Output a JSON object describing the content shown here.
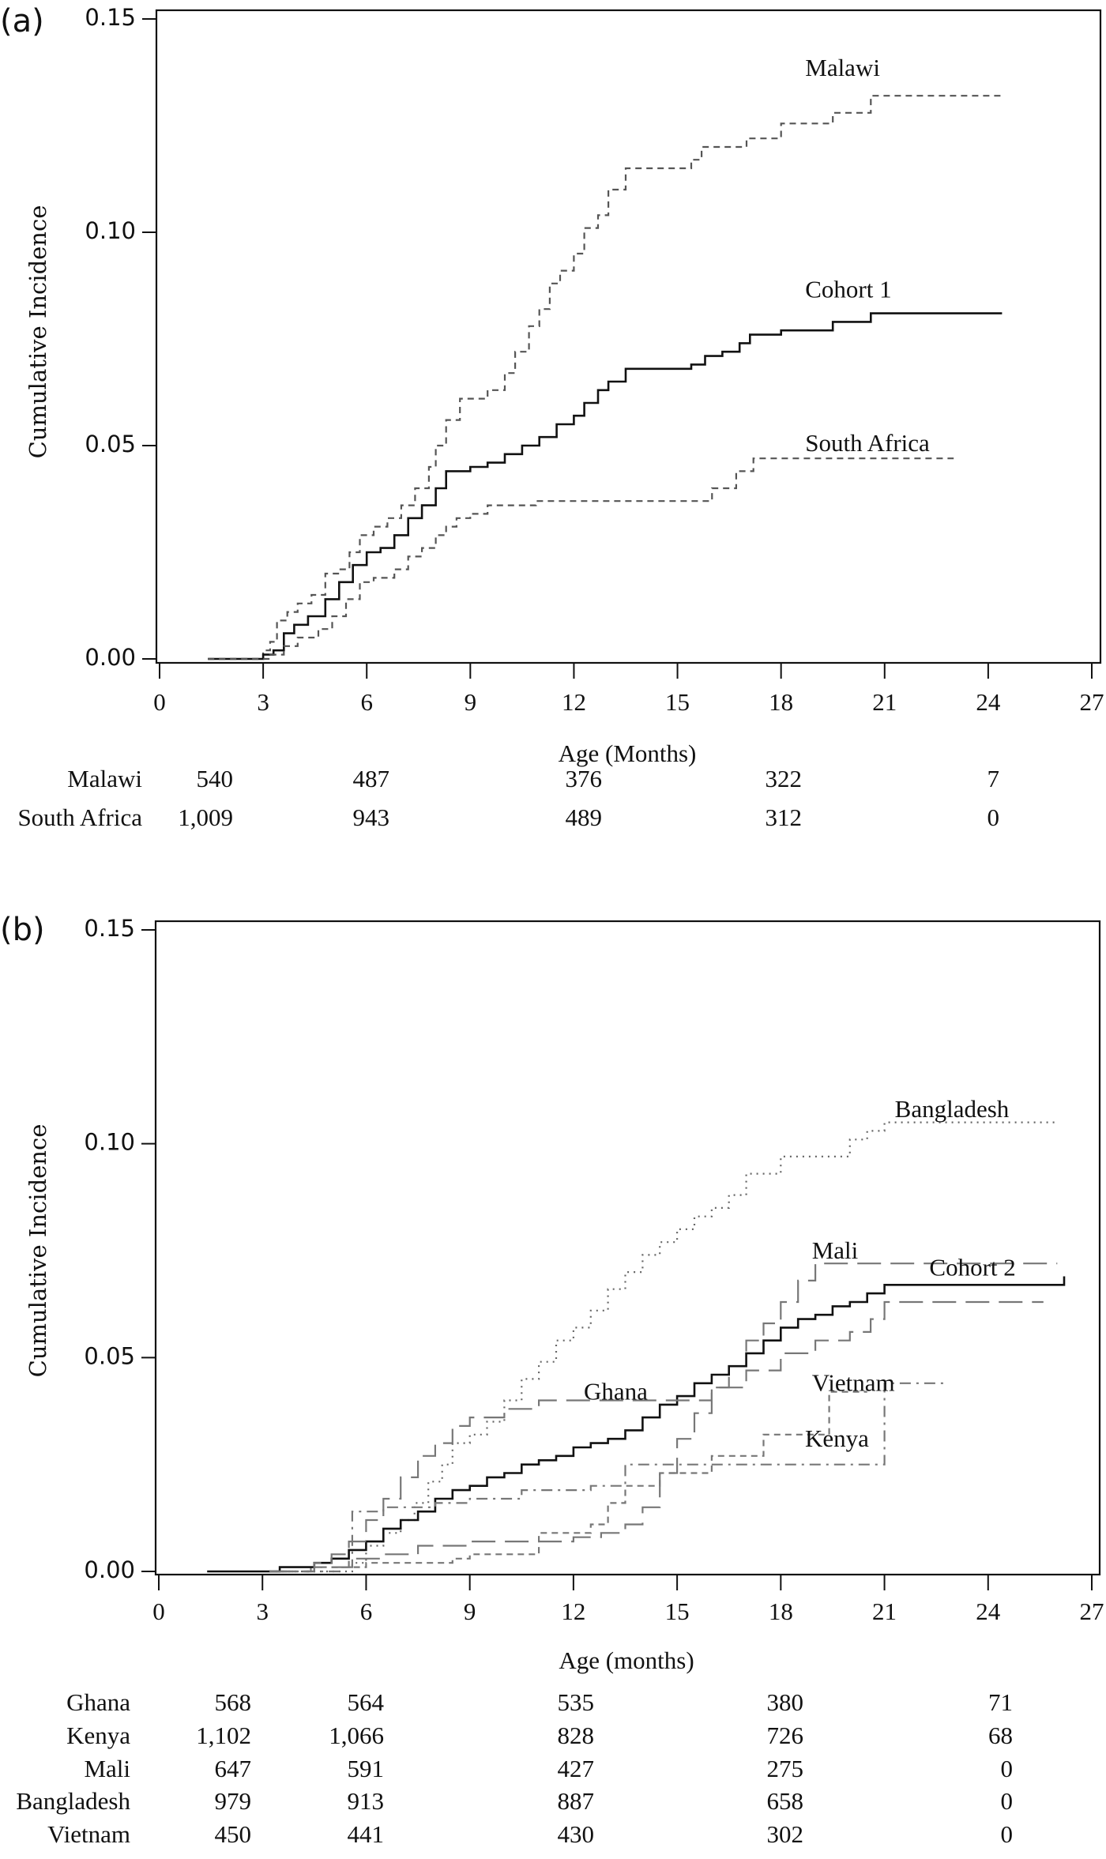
{
  "figure": {
    "panels_count": 2
  },
  "chart_data": [
    {
      "panel_label": "(a)",
      "type": "line",
      "step": true,
      "title": "",
      "xlabel": "Age (Months)",
      "ylabel": "Cumulative Incidence",
      "xlim": [
        0,
        27
      ],
      "ylim": [
        0,
        0.15
      ],
      "xticks": [
        0,
        3,
        6,
        9,
        12,
        15,
        18,
        21,
        24,
        27
      ],
      "xtick_labels": [
        "0",
        "3",
        "6",
        "9",
        "12",
        "15",
        "18",
        "21",
        "24",
        "27"
      ],
      "yticks": [
        0,
        0.05,
        0.1,
        0.15
      ],
      "ytick_labels": [
        "0.00",
        "0.05",
        "0.10",
        "0.15"
      ],
      "grid": false,
      "legend": "inline labels near curve ends",
      "series": [
        {
          "name": "Malawi",
          "style": "short-dash",
          "color": "#555555",
          "label_at": [
            18.7,
            0.138
          ],
          "x": [
            1.4,
            2.9,
            3.0,
            3.2,
            3.4,
            3.7,
            4.0,
            4.4,
            4.8,
            5.2,
            5.5,
            5.8,
            6.2,
            6.6,
            7.0,
            7.4,
            7.8,
            8.0,
            8.3,
            8.7,
            9.0,
            9.5,
            10.0,
            10.3,
            10.7,
            11.0,
            11.3,
            11.6,
            12.0,
            12.3,
            12.7,
            13.0,
            13.5,
            15.4,
            15.7,
            17.0,
            18.0,
            19.5,
            20.6,
            24.4
          ],
          "y": [
            0.0,
            0.0,
            0.002,
            0.004,
            0.009,
            0.011,
            0.013,
            0.015,
            0.02,
            0.021,
            0.025,
            0.029,
            0.031,
            0.033,
            0.036,
            0.04,
            0.045,
            0.05,
            0.056,
            0.061,
            0.061,
            0.063,
            0.067,
            0.072,
            0.078,
            0.082,
            0.088,
            0.091,
            0.095,
            0.101,
            0.104,
            0.11,
            0.115,
            0.117,
            0.12,
            0.122,
            0.1255,
            0.128,
            0.132,
            0.132
          ]
        },
        {
          "name": "Cohort 1",
          "style": "solid",
          "color": "#111111",
          "label_at": [
            18.7,
            0.086
          ],
          "x": [
            1.4,
            2.9,
            3.0,
            3.3,
            3.6,
            3.9,
            4.3,
            4.8,
            5.2,
            5.6,
            6.0,
            6.4,
            6.8,
            7.2,
            7.6,
            8.0,
            8.3,
            8.6,
            9.0,
            9.5,
            10.0,
            10.5,
            11.0,
            11.5,
            12.0,
            12.3,
            12.7,
            13.0,
            13.5,
            15.4,
            15.8,
            16.3,
            16.8,
            17.1,
            18.0,
            19.5,
            20.6,
            24.4
          ],
          "y": [
            0.0,
            0.0,
            0.001,
            0.002,
            0.006,
            0.008,
            0.01,
            0.014,
            0.018,
            0.022,
            0.025,
            0.026,
            0.029,
            0.033,
            0.036,
            0.04,
            0.044,
            0.044,
            0.045,
            0.046,
            0.048,
            0.05,
            0.052,
            0.055,
            0.057,
            0.06,
            0.063,
            0.065,
            0.068,
            0.069,
            0.071,
            0.072,
            0.074,
            0.076,
            0.077,
            0.079,
            0.081,
            0.081
          ]
        },
        {
          "name": "South Africa",
          "style": "short-dash",
          "color": "#555555",
          "label_at": [
            18.7,
            0.05
          ],
          "x": [
            1.4,
            2.9,
            3.2,
            3.6,
            4.0,
            4.6,
            5.0,
            5.4,
            5.8,
            6.2,
            6.8,
            7.2,
            7.6,
            8.0,
            8.3,
            8.6,
            9.0,
            9.5,
            10.9,
            16.0,
            16.7,
            17.2,
            23.0
          ],
          "y": [
            0.0,
            0.0,
            0.001,
            0.003,
            0.005,
            0.007,
            0.01,
            0.014,
            0.018,
            0.019,
            0.021,
            0.024,
            0.026,
            0.029,
            0.031,
            0.033,
            0.034,
            0.036,
            0.037,
            0.04,
            0.044,
            0.047,
            0.047
          ]
        }
      ],
      "risk_table": {
        "x_positions": [
          1.5,
          6,
          12,
          18,
          24
        ],
        "rows": [
          {
            "label": "Malawi",
            "values": [
              "540",
              "487",
              "376",
              "322",
              "7"
            ]
          },
          {
            "label": "South Africa",
            "values": [
              "1,009",
              "943",
              "489",
              "312",
              "0"
            ]
          }
        ]
      }
    },
    {
      "panel_label": "(b)",
      "type": "line",
      "step": true,
      "title": "",
      "xlabel": "Age (months)",
      "ylabel": "Cumulative Incidence",
      "xlim": [
        0,
        27
      ],
      "ylim": [
        0,
        0.15
      ],
      "xticks": [
        0,
        3,
        6,
        9,
        12,
        15,
        18,
        21,
        24,
        27
      ],
      "xtick_labels": [
        "0",
        "3",
        "6",
        "9",
        "12",
        "15",
        "18",
        "21",
        "24",
        "27"
      ],
      "yticks": [
        0,
        0.05,
        0.1,
        0.15
      ],
      "ytick_labels": [
        "0.00",
        "0.05",
        "0.10",
        "0.15"
      ],
      "grid": false,
      "legend": "inline labels near curves",
      "series": [
        {
          "name": "Bangladesh",
          "style": "dotted",
          "color": "#666666",
          "label_at": [
            21.3,
            0.1075
          ],
          "x": [
            3.2,
            5.3,
            5.6,
            6.0,
            6.5,
            7.0,
            7.4,
            7.8,
            8.2,
            8.5,
            9.0,
            9.5,
            10.0,
            10.5,
            11.0,
            11.5,
            12.0,
            12.5,
            13.0,
            13.5,
            14.0,
            14.5,
            15.0,
            15.5,
            16.0,
            16.5,
            17.0,
            18.0,
            19.0,
            20.0,
            20.5,
            21.0,
            26.0
          ],
          "y": [
            0.0,
            0.0,
            0.002,
            0.006,
            0.009,
            0.012,
            0.016,
            0.021,
            0.025,
            0.03,
            0.032,
            0.035,
            0.04,
            0.045,
            0.049,
            0.054,
            0.057,
            0.061,
            0.066,
            0.07,
            0.074,
            0.077,
            0.08,
            0.083,
            0.085,
            0.088,
            0.093,
            0.097,
            0.097,
            0.101,
            0.103,
            0.105,
            0.105
          ]
        },
        {
          "name": "Mali",
          "style": "long-dash",
          "color": "#777777",
          "label_at": [
            18.9,
            0.0745
          ],
          "x": [
            3.2,
            4.4,
            5.5,
            6.5,
            7.5,
            9.0,
            10.5,
            12.0,
            12.8,
            13.5,
            14.0,
            14.5,
            15.0,
            15.5,
            16.0,
            16.5,
            17.0,
            17.5,
            18.0,
            18.5,
            19.0,
            26.0
          ],
          "y": [
            0.0,
            0.001,
            0.003,
            0.004,
            0.006,
            0.007,
            0.007,
            0.008,
            0.009,
            0.011,
            0.015,
            0.023,
            0.031,
            0.037,
            0.043,
            0.048,
            0.054,
            0.058,
            0.063,
            0.068,
            0.072,
            0.072
          ]
        },
        {
          "name": "Cohort 2",
          "style": "solid",
          "color": "#111111",
          "label_at": [
            22.3,
            0.0705
          ],
          "x": [
            1.4,
            3.1,
            3.5,
            4.0,
            4.5,
            5.0,
            5.5,
            6.0,
            6.5,
            7.0,
            7.5,
            8.0,
            8.5,
            9.0,
            9.5,
            10.0,
            10.5,
            11.0,
            11.5,
            12.0,
            12.5,
            13.0,
            13.5,
            14.0,
            14.5,
            15.0,
            15.5,
            16.0,
            16.5,
            17.0,
            17.5,
            18.0,
            18.5,
            19.0,
            19.5,
            20.0,
            20.5,
            21.0,
            26.2
          ],
          "y": [
            0.0,
            0.0,
            0.001,
            0.001,
            0.002,
            0.003,
            0.005,
            0.007,
            0.01,
            0.012,
            0.014,
            0.017,
            0.019,
            0.02,
            0.022,
            0.023,
            0.025,
            0.026,
            0.027,
            0.029,
            0.03,
            0.031,
            0.033,
            0.036,
            0.039,
            0.041,
            0.044,
            0.046,
            0.048,
            0.051,
            0.054,
            0.057,
            0.059,
            0.06,
            0.062,
            0.063,
            0.065,
            0.067,
            0.069
          ]
        },
        {
          "name": "Ghana",
          "style": "long-dash",
          "color": "#777777",
          "label_at": [
            12.3,
            0.0415
          ],
          "x": [
            3.3,
            4.5,
            5.0,
            5.5,
            6.0,
            6.5,
            7.0,
            7.5,
            8.0,
            8.5,
            9.0,
            10.0,
            11.0,
            15.5,
            16.0,
            17.0,
            18.0,
            19.0,
            20.0,
            20.6,
            21.0,
            25.6
          ],
          "y": [
            0.0,
            0.002,
            0.004,
            0.007,
            0.012,
            0.017,
            0.022,
            0.027,
            0.03,
            0.034,
            0.036,
            0.038,
            0.04,
            0.04,
            0.043,
            0.047,
            0.051,
            0.054,
            0.056,
            0.059,
            0.063,
            0.063
          ]
        },
        {
          "name": "Vietnam",
          "style": "dash-dot",
          "color": "#777777",
          "label_at": [
            18.9,
            0.0435
          ],
          "x": [
            3.5,
            5.3,
            5.6,
            6.5,
            8.0,
            9.0,
            10.5,
            12.5,
            13.5,
            14.5,
            16.0,
            17.0,
            19.0,
            21.0,
            22.8
          ],
          "y": [
            0.0,
            0.001,
            0.014,
            0.015,
            0.016,
            0.017,
            0.019,
            0.02,
            0.025,
            0.025,
            0.025,
            0.025,
            0.025,
            0.044,
            0.044
          ]
        },
        {
          "name": "Kenya",
          "style": "short-dash",
          "color": "#777777",
          "label_at": [
            18.7,
            0.0305
          ],
          "x": [
            3.2,
            4.5,
            6.0,
            8.5,
            9.0,
            11.0,
            12.5,
            13.0,
            13.5,
            14.5,
            16.0,
            17.5,
            19.1,
            19.4,
            20.5
          ],
          "y": [
            0.0,
            0.001,
            0.002,
            0.003,
            0.004,
            0.009,
            0.011,
            0.016,
            0.02,
            0.023,
            0.027,
            0.032,
            0.032,
            0.042,
            0.042
          ]
        }
      ],
      "risk_table": {
        "x_positions": [
          1.5,
          6,
          12,
          18,
          24
        ],
        "rows": [
          {
            "label": "Ghana",
            "values": [
              "568",
              "564",
              "535",
              "380",
              "71"
            ]
          },
          {
            "label": "Kenya",
            "values": [
              "1,102",
              "1,066",
              "828",
              "726",
              "68"
            ]
          },
          {
            "label": "Mali",
            "values": [
              "647",
              "591",
              "427",
              "275",
              "0"
            ]
          },
          {
            "label": "Bangladesh",
            "values": [
              "979",
              "913",
              "887",
              "658",
              "0"
            ]
          },
          {
            "label": "Vietnam",
            "values": [
              "450",
              "441",
              "430",
              "302",
              "0"
            ]
          }
        ]
      }
    }
  ]
}
